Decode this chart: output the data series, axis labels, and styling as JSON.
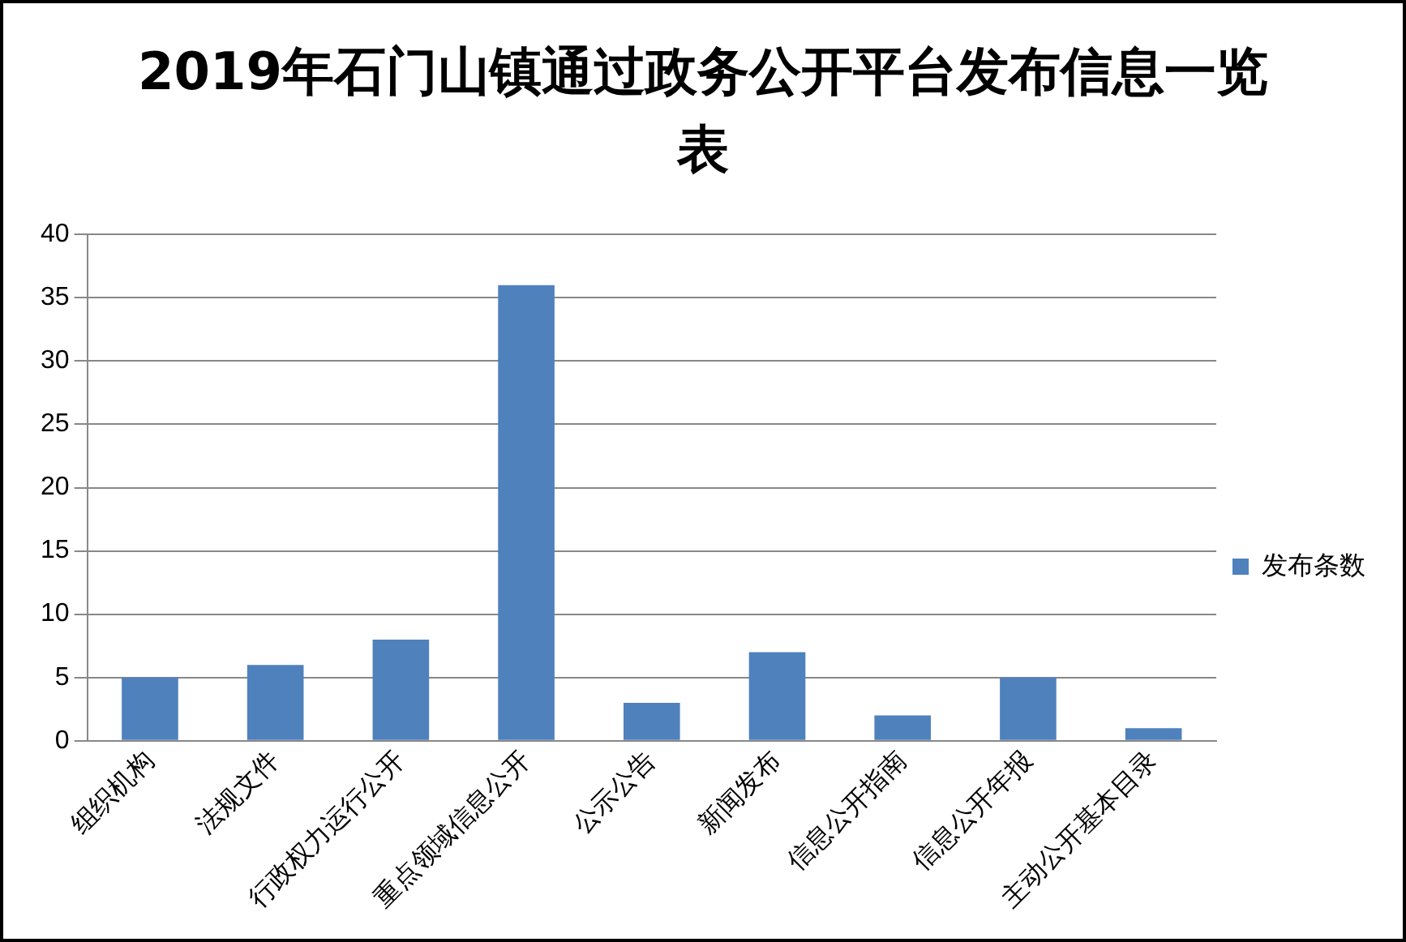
{
  "chart_data": {
    "type": "bar",
    "title": "2019年石门山镇通过政务公开平台发布信息一览表",
    "categories": [
      "组织机构",
      "法规文件",
      "行政权力运行公开",
      "重点领域信息公开",
      "公示公告",
      "新闻发布",
      "信息公开指南",
      "信息公开年报",
      "主动公开基本目录"
    ],
    "series": [
      {
        "name": "发布条数",
        "color": "#4f81bd",
        "values": [
          5,
          6,
          8,
          36,
          3,
          7,
          2,
          5,
          1
        ]
      }
    ],
    "ylim": [
      0,
      40
    ],
    "yticks": [
      0,
      5,
      10,
      15,
      20,
      25,
      30,
      35,
      40
    ],
    "grid": "y",
    "legend": "right"
  }
}
